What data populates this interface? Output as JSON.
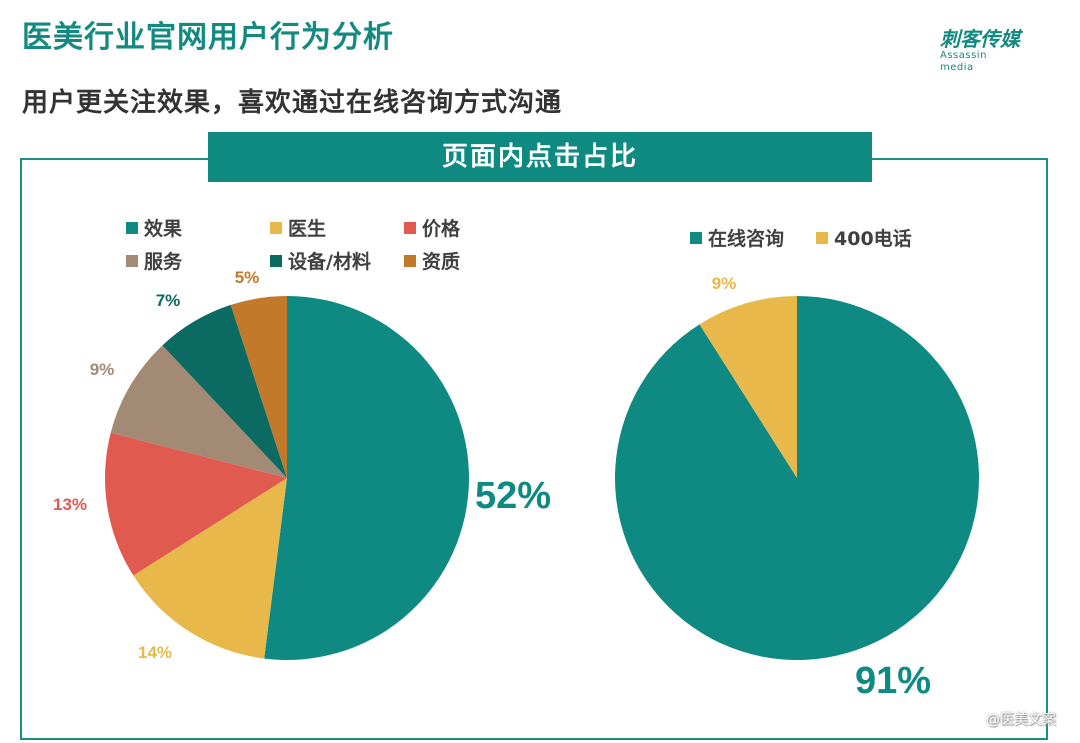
{
  "header": {
    "title": "医美行业官网用户行为分析",
    "subtitle": "用户更关注效果，喜欢通过在线咨询方式沟通",
    "logo_cn": "刺客传媒",
    "logo_en": "Assassin media"
  },
  "banner": {
    "label": "页面内点击占比"
  },
  "watermark": "@医美文案",
  "colors": {
    "teal": "#0e8a82",
    "yellow": "#e8b84a",
    "red": "#e05a50",
    "tan": "#a38a74",
    "dark_teal": "#0b6b62",
    "brown": "#c27a2a",
    "title": "#138a80",
    "frame": "#1a8f86"
  },
  "chart_data": [
    {
      "type": "pie",
      "title": "页面内点击占比",
      "categories": [
        "效果",
        "医生",
        "价格",
        "服务",
        "设备/材料",
        "资质"
      ],
      "values": [
        52,
        14,
        13,
        9,
        7,
        5
      ],
      "labels": [
        "52%",
        "14%",
        "13%",
        "9%",
        "7%",
        "5%"
      ],
      "colors": [
        "#0e8a82",
        "#e8b84a",
        "#e05a50",
        "#a38a74",
        "#0b6b62",
        "#c27a2a"
      ],
      "legend_position": "top",
      "start_angle": "12 o'clock",
      "direction": "clockwise"
    },
    {
      "type": "pie",
      "title": "页面内点击占比",
      "categories": [
        "在线咨询",
        "400电话"
      ],
      "values": [
        91,
        9
      ],
      "labels": [
        "91%",
        "9%"
      ],
      "colors": [
        "#0e8a82",
        "#e8b84a"
      ],
      "legend_position": "top",
      "start_angle": "12 o'clock",
      "direction": "clockwise"
    }
  ],
  "legend_left": [
    {
      "label": "效果",
      "color": "#0e8a82"
    },
    {
      "label": "医生",
      "color": "#e8b84a"
    },
    {
      "label": "价格",
      "color": "#e05a50"
    },
    {
      "label": "服务",
      "color": "#a38a74"
    },
    {
      "label": "设备/材料",
      "color": "#0b6b62"
    },
    {
      "label": "资质",
      "color": "#c27a2a"
    }
  ],
  "legend_right": [
    {
      "label": "在线咨询",
      "color": "#0e8a82"
    },
    {
      "label": "400电话",
      "color": "#e8b84a"
    }
  ]
}
